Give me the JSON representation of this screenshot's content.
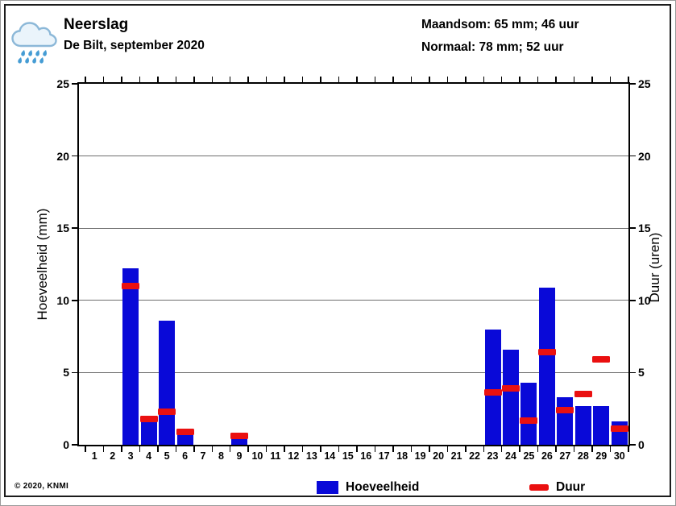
{
  "header": {
    "title": "Neerslag",
    "subtitle": "De Bilt, september 2020",
    "maandsom": "Maandsom: 65 mm; 46 uur",
    "normaal": "Normaal: 78 mm; 52 uur",
    "icon": "rain-cloud-icon"
  },
  "footer": {
    "copyright": "© 2020, KNMI"
  },
  "legend": [
    {
      "label": "Hoeveelheid",
      "shape": "square",
      "color": "#0909d8"
    },
    {
      "label": "Duur",
      "shape": "dash",
      "color": "#ea1010"
    }
  ],
  "colors": {
    "amount_bar": "#0909d8",
    "duration_dash": "#ea1010",
    "gridline": "#6e6e6e",
    "axis": "#000000"
  },
  "chart_data": {
    "type": "bar",
    "title": "Neerslag — De Bilt, september 2020",
    "ylabel_left": "Hoeveelheid (mm)",
    "ylabel_right": "Duur (uren)",
    "ylim": [
      0,
      25
    ],
    "yticks": [
      0,
      5,
      10,
      15,
      20,
      25
    ],
    "gridline_values": [
      5,
      10,
      15,
      20
    ],
    "legend_position": "bottom",
    "categories": [
      1,
      2,
      3,
      4,
      5,
      6,
      7,
      8,
      9,
      10,
      11,
      12,
      13,
      14,
      15,
      16,
      17,
      18,
      19,
      20,
      21,
      22,
      23,
      24,
      25,
      26,
      27,
      28,
      29,
      30
    ],
    "series": [
      {
        "name": "Hoeveelheid",
        "unit": "mm",
        "style": "bar",
        "color": "#0909d8",
        "values": [
          null,
          null,
          12.2,
          2.0,
          8.6,
          1.1,
          null,
          null,
          0.4,
          null,
          null,
          null,
          null,
          null,
          null,
          null,
          null,
          null,
          null,
          null,
          null,
          null,
          8.0,
          6.6,
          4.3,
          10.9,
          3.3,
          2.7,
          2.7,
          1.6
        ]
      },
      {
        "name": "Duur",
        "unit": "uur",
        "style": "dash-marker",
        "color": "#ea1010",
        "values": [
          null,
          null,
          11.0,
          1.8,
          2.3,
          0.9,
          null,
          null,
          0.6,
          null,
          null,
          null,
          null,
          null,
          null,
          null,
          null,
          null,
          null,
          null,
          null,
          null,
          3.6,
          3.9,
          1.7,
          6.4,
          2.4,
          3.5,
          5.9,
          1.1
        ]
      }
    ]
  }
}
